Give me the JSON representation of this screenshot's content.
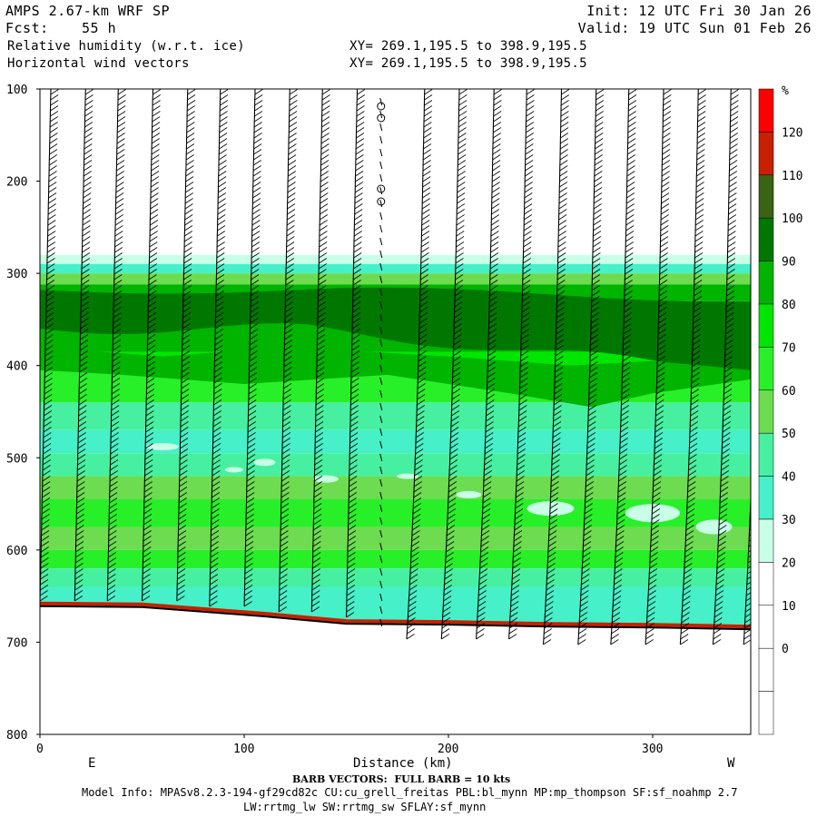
{
  "header": {
    "title": "AMPS 2.67-km WRF SP",
    "forecast_label": "Fcst:",
    "forecast_value": "55 h",
    "init": "Init: 12 UTC Fri 30 Jan 26",
    "valid": "Valid: 19 UTC Sun 01 Feb 26",
    "field1": "Relative humidity (w.r.t. ice)",
    "field2": "Horizontal wind vectors",
    "xy1": "XY= 269.1,195.5 to 398.9,195.5",
    "xy2": "XY= 269.1,195.5 to 398.9,195.5"
  },
  "footer": {
    "barb_note": "BARB VECTORS:  FULL BARB = 10 kts",
    "model_info": "Model Info: MPASv8.2.3-194-gf29cd82c CU:cu_grell_freitas PBL:bl_mynn MP:mp_thompson SF:sf_noahmp 2.7",
    "radiation_info": "LW:rrtmg_lw SW:rrtmg_sw SFLAY:sf_mynn"
  },
  "colorbar": {
    "unit": "%",
    "labels": [
      "120",
      "110",
      "100",
      "90",
      "80",
      "70",
      "60",
      "50",
      "40",
      "30",
      "20",
      "10",
      "0"
    ],
    "colors": [
      "#ff0000",
      "#c82000",
      "#3a6414",
      "#007800",
      "#00b400",
      "#00e600",
      "#28f028",
      "#6edc50",
      "#46f0a0",
      "#46f0c8",
      "#c8ffe6",
      "#ffffff",
      "#ffffff",
      "#ffffff",
      "#ffffff"
    ]
  },
  "chart_data": {
    "type": "heatmap",
    "title": "Relative humidity (w.r.t. ice)",
    "xlabel": "Distance (km)",
    "ylabel": "",
    "x_ticks": [
      "0",
      "100",
      "200",
      "300"
    ],
    "y_ticks": [
      "100",
      "200",
      "300",
      "400",
      "500",
      "600",
      "700",
      "800"
    ],
    "xlim": [
      0,
      348
    ],
    "ylim": [
      800,
      100
    ],
    "x_end_labels": {
      "left": "E",
      "right": "W"
    },
    "rh_levels": [
      0,
      10,
      20,
      30,
      40,
      50,
      60,
      70,
      80,
      90,
      100,
      110,
      120
    ],
    "rh_bands_by_pressure": [
      {
        "p_top": 100,
        "p_bottom": 280,
        "rh": "<30"
      },
      {
        "p_top": 280,
        "p_bottom": 315,
        "rh": "30-60"
      },
      {
        "p_top": 315,
        "p_bottom": 400,
        "rh": "80-100"
      },
      {
        "p_top": 400,
        "p_bottom": 440,
        "rh": "70-80"
      },
      {
        "p_top": 440,
        "p_bottom": 520,
        "rh": "40-60"
      },
      {
        "p_top": 520,
        "p_bottom": 560,
        "rh": "50-60"
      },
      {
        "p_top": 560,
        "p_bottom": 610,
        "rh": "30-50"
      },
      {
        "p_top": 610,
        "p_bottom": 660,
        "rh": "40-60"
      }
    ],
    "terrain_pressure": [
      {
        "x": 0,
        "p": 661
      },
      {
        "x": 50,
        "p": 662
      },
      {
        "x": 80,
        "p": 667
      },
      {
        "x": 110,
        "p": 672
      },
      {
        "x": 130,
        "p": 676
      },
      {
        "x": 150,
        "p": 680
      },
      {
        "x": 200,
        "p": 681
      },
      {
        "x": 250,
        "p": 683
      },
      {
        "x": 300,
        "p": 684
      },
      {
        "x": 348,
        "p": 686
      }
    ],
    "barb_columns_km": [
      0,
      17,
      33,
      50,
      67,
      83,
      100,
      117,
      133,
      150,
      167,
      183,
      200,
      217,
      233,
      250,
      267,
      283,
      300,
      317,
      333,
      348
    ]
  }
}
